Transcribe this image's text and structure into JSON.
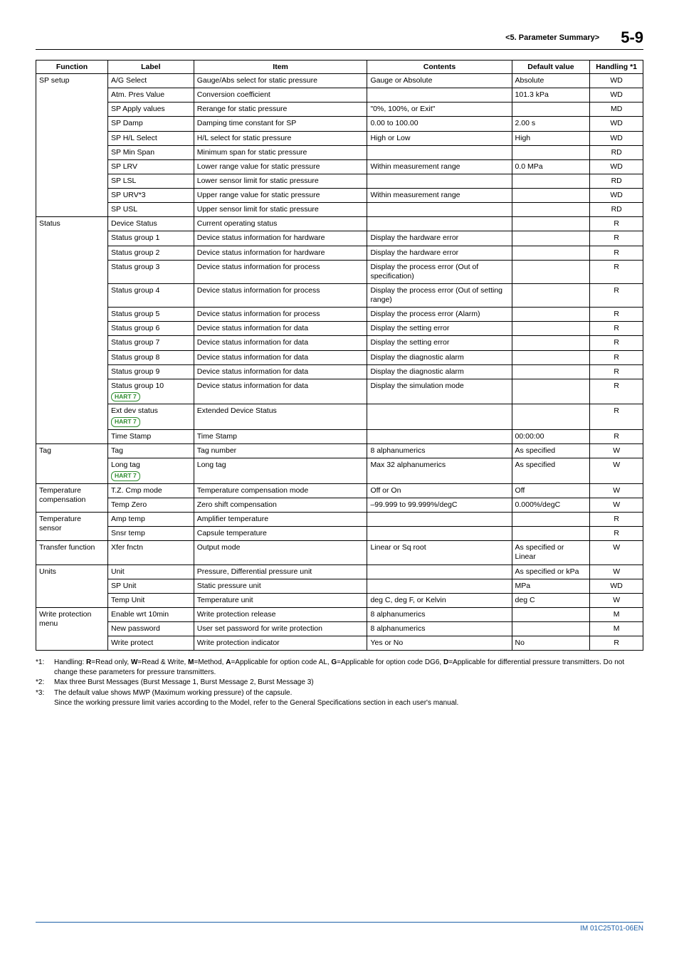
{
  "header": {
    "section": "<5.  Parameter Summary>",
    "page": "5-9"
  },
  "columns": {
    "function": "Function",
    "label": "Label",
    "item": "Item",
    "contents": "Contents",
    "default": "Default value",
    "handling": "Handling *1"
  },
  "rows": [
    {
      "fn": "SP setup",
      "fnspan": 10,
      "label": "A/G Select",
      "item": "Gauge/Abs select for static pressure",
      "contents": "Gauge or Absolute",
      "def": "Absolute",
      "hand": "WD"
    },
    {
      "label": "Atm. Pres Value",
      "item": "Conversion coefficient",
      "contents": "",
      "def": "101.3 kPa",
      "hand": "WD"
    },
    {
      "label": "SP Apply values",
      "item": "Rerange for static pressure",
      "contents": "\"0%, 100%, or Exit\"",
      "def": "",
      "hand": "MD"
    },
    {
      "label": "SP Damp",
      "item": "Damping time constant for SP",
      "contents": "0.00 to 100.00",
      "def": "2.00 s",
      "hand": "WD"
    },
    {
      "label": "SP H/L Select",
      "item": "H/L select for static pressure",
      "contents": "High or Low",
      "def": "High",
      "hand": "WD"
    },
    {
      "label": "SP Min Span",
      "item": "Minimum span for static pressure",
      "contents": "",
      "def": "",
      "hand": "RD"
    },
    {
      "label": "SP LRV",
      "item": "Lower range value for static pressure",
      "contents": "Within measurement range",
      "def": "0.0 MPa",
      "hand": "WD"
    },
    {
      "label": "SP LSL",
      "item": "Lower sensor limit for static pressure",
      "contents": "",
      "def": "",
      "hand": "RD"
    },
    {
      "label": "SP URV*3",
      "item": "Upper range value for static pressure",
      "contents": "Within measurement range",
      "def": "",
      "hand": "WD"
    },
    {
      "label": "SP USL",
      "item": "Upper sensor limit for static pressure",
      "contents": "",
      "def": "",
      "hand": "RD"
    },
    {
      "fn": "Status",
      "fnspan": 13,
      "label": "Device Status",
      "item": "Current operating status",
      "contents": "",
      "def": "",
      "hand": "R"
    },
    {
      "label": "Status group 1",
      "item": "Device status information for hardware",
      "contents": "Display the hardware error",
      "def": "",
      "hand": "R"
    },
    {
      "label": "Status group 2",
      "item": "Device status information for hardware",
      "contents": "Display the hardware error",
      "def": "",
      "hand": "R"
    },
    {
      "label": "Status group 3",
      "item": "Device status information for process",
      "contents": "Display the process error (Out of specification)",
      "def": "",
      "hand": "R"
    },
    {
      "label": "Status group 4",
      "item": "Device status information for process",
      "contents": "Display the process error (Out of setting range)",
      "def": "",
      "hand": "R"
    },
    {
      "label": "Status group 5",
      "item": "Device status information for process",
      "contents": "Display the process error (Alarm)",
      "def": "",
      "hand": "R"
    },
    {
      "label": "Status group 6",
      "item": "Device status information for data",
      "contents": "Display the setting error",
      "def": "",
      "hand": "R"
    },
    {
      "label": "Status group 7",
      "item": "Device status information for data",
      "contents": "Display the setting error",
      "def": "",
      "hand": "R"
    },
    {
      "label": "Status group 8",
      "item": "Device status information for data",
      "contents": "Display the diagnostic alarm",
      "def": "",
      "hand": "R"
    },
    {
      "label": "Status group 9",
      "item": "Device status information for data",
      "contents": "Display the diagnostic alarm",
      "def": "",
      "hand": "R"
    },
    {
      "label": "Status group 10",
      "badge": "HART 7",
      "item": "Device status information for data",
      "contents": "Display the simulation mode",
      "def": "",
      "hand": "R"
    },
    {
      "label": "Ext dev status",
      "badge": "HART 7",
      "item": "Extended Device Status",
      "contents": "",
      "def": "",
      "hand": "R"
    },
    {
      "label": "Time Stamp",
      "item": "Time Stamp",
      "contents": "",
      "def": "00:00:00",
      "hand": "R"
    },
    {
      "fn": "Tag",
      "fnspan": 2,
      "label": "Tag",
      "item": "Tag number",
      "contents": "8 alphanumerics",
      "def": "As specified",
      "hand": "W"
    },
    {
      "label": "Long tag",
      "badge": "HART 7",
      "item": "Long tag",
      "contents": "Max 32 alphanumerics",
      "def": "As specified",
      "hand": "W"
    },
    {
      "fn": "Temperature compensation",
      "fnspan": 2,
      "label": "T.Z. Cmp mode",
      "item": "Temperature compensation mode",
      "contents": "Off or On",
      "def": "Off",
      "hand": "W"
    },
    {
      "label": "Temp Zero",
      "item": "Zero shift compensation",
      "contents": "–99.999 to 99.999%/degC",
      "def": "0.000%/degC",
      "hand": "W"
    },
    {
      "fn": "Temperature sensor",
      "fnspan": 2,
      "label": "Amp temp",
      "item": "Amplifier temperature",
      "contents": "",
      "def": "",
      "hand": "R"
    },
    {
      "label": "Snsr temp",
      "item": "Capsule temperature",
      "contents": "",
      "def": "",
      "hand": "R"
    },
    {
      "fn": "Transfer function",
      "fnspan": 1,
      "label": "Xfer fnctn",
      "item": "Output mode",
      "contents": "Linear or Sq root",
      "def": "As specified or Linear",
      "hand": "W"
    },
    {
      "fn": "Units",
      "fnspan": 3,
      "label": "Unit",
      "item": "Pressure, Differential pressure unit",
      "contents": "",
      "def": "As specified or kPa",
      "hand": "W"
    },
    {
      "label": "SP Unit",
      "item": "Static pressure unit",
      "contents": "",
      "def": "MPa",
      "hand": "WD"
    },
    {
      "label": "Temp Unit",
      "item": "Temperature unit",
      "contents": "deg C, deg F, or Kelvin",
      "def": "deg C",
      "hand": "W"
    },
    {
      "fn": "Write protection menu",
      "fnspan": 3,
      "label": "Enable wrt 10min",
      "item": "Write protection release",
      "contents": "8 alphanumerics",
      "def": "",
      "hand": "M"
    },
    {
      "label": "New password",
      "item": "User set password for write protection",
      "contents": "8 alphanumerics",
      "def": "",
      "hand": "M"
    },
    {
      "label": "Write protect",
      "item": "Write protection indicator",
      "contents": "Yes or No",
      "def": "No",
      "hand": "R"
    }
  ],
  "footnotes": [
    {
      "tag": "*1:",
      "text": "Handling: <b>R</b>=Read only, <b>W</b>=Read & Write, <b>M</b>=Method, <b>A</b>=Applicable for option code AL, <b>G</b>=Applicable for option code DG6, <b>D</b>=Applicable for differential pressure transmitters. Do not change these parameters for pressure transmitters."
    },
    {
      "tag": "*2:",
      "text": "Max three Burst Messages (Burst Message 1, Burst Message 2, Burst Message 3)"
    },
    {
      "tag": "*3:",
      "text": "The default value shows MWP (Maximum working pressure) of the capsule."
    },
    {
      "tag": "",
      "text": "Since the working pressure limit varies according to the Model, refer to the General Specifications section in each user's manual."
    }
  ],
  "footer": "IM 01C25T01-06EN"
}
